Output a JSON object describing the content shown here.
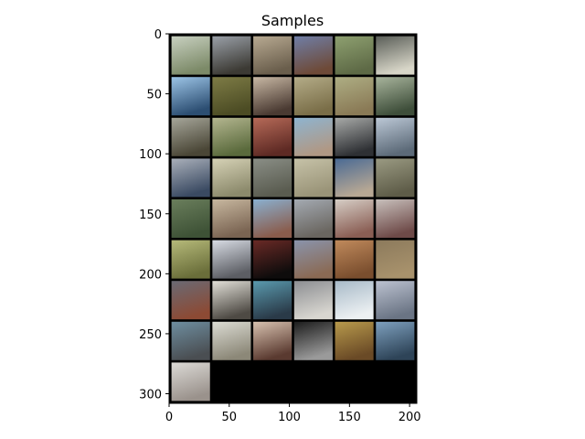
{
  "chart_data": {
    "type": "heatmap",
    "title": "Samples",
    "xlabel": "",
    "ylabel": "",
    "xlim": [
      0,
      206
    ],
    "ylim": [
      308,
      0
    ],
    "xticks": [
      0,
      50,
      100,
      150,
      200
    ],
    "yticks": [
      0,
      50,
      100,
      150,
      200,
      250,
      300
    ],
    "grid": false,
    "grid_layout": {
      "rows": 9,
      "cols": 6,
      "tile_size": 32,
      "padding": 2,
      "sample_count": 49
    },
    "background_color": "#000000",
    "tiles": [
      {
        "top": "#c8d0c0",
        "bottom": "#7c8a68"
      },
      {
        "top": "#9aa0a8",
        "bottom": "#3c3a34"
      },
      {
        "top": "#b8aa92",
        "bottom": "#6a5e4c"
      },
      {
        "top": "#6f7ea6",
        "bottom": "#6e4a38"
      },
      {
        "top": "#8ea070",
        "bottom": "#5e6a46"
      },
      {
        "top": "#5a5e58",
        "bottom": "#d8d6c8"
      },
      {
        "top": "#9cc4e6",
        "bottom": "#2c4e72"
      },
      {
        "top": "#7e7c46",
        "bottom": "#4c4c24"
      },
      {
        "top": "#c8b8a4",
        "bottom": "#4a3a32"
      },
      {
        "top": "#b4ac88",
        "bottom": "#7a6e48"
      },
      {
        "top": "#aeae84",
        "bottom": "#8a7a56"
      },
      {
        "top": "#a8b49c",
        "bottom": "#3e4e3a"
      },
      {
        "top": "#a6a69a",
        "bottom": "#4a4636"
      },
      {
        "top": "#b4b690",
        "bottom": "#5a6a3c"
      },
      {
        "top": "#b66a58",
        "bottom": "#5e2a24"
      },
      {
        "top": "#8eb4d0",
        "bottom": "#b09884"
      },
      {
        "top": "#a8aaa8",
        "bottom": "#2e3034"
      },
      {
        "top": "#bcc8d6",
        "bottom": "#5c6a78"
      },
      {
        "top": "#aab0ba",
        "bottom": "#3a4a62"
      },
      {
        "top": "#d6d2b6",
        "bottom": "#8c8a6c"
      },
      {
        "top": "#8a8e86",
        "bottom": "#5a5c50"
      },
      {
        "top": "#c6c2a8",
        "bottom": "#9a9478"
      },
      {
        "top": "#4a6a94",
        "bottom": "#b8a894"
      },
      {
        "top": "#9a9a82",
        "bottom": "#5e5c48"
      },
      {
        "top": "#6a7e5c",
        "bottom": "#3e5236"
      },
      {
        "top": "#c8b8a0",
        "bottom": "#7a6452"
      },
      {
        "top": "#8ab0d0",
        "bottom": "#8a5c4c"
      },
      {
        "top": "#a4aab2",
        "bottom": "#6a6660"
      },
      {
        "top": "#d6cec6",
        "bottom": "#8a5e54"
      },
      {
        "top": "#c8c0bc",
        "bottom": "#6e4a48"
      },
      {
        "top": "#b6ba7a",
        "bottom": "#6a6e3a"
      },
      {
        "top": "#d8dce4",
        "bottom": "#5c5e64"
      },
      {
        "top": "#6a2a26",
        "bottom": "#0e0c0c"
      },
      {
        "top": "#8a94ac",
        "bottom": "#8a6a54"
      },
      {
        "top": "#c08a5c",
        "bottom": "#7a4e2e"
      },
      {
        "top": "#8c7a5c",
        "bottom": "#a8926c"
      },
      {
        "top": "#6a6a74",
        "bottom": "#8c4a34"
      },
      {
        "top": "#e2e0d8",
        "bottom": "#4e4a44"
      },
      {
        "top": "#5a9aae",
        "bottom": "#2a3a48"
      },
      {
        "top": "#8c8e92",
        "bottom": "#d8d6d0"
      },
      {
        "top": "#a8bac8",
        "bottom": "#ecf0f2"
      },
      {
        "top": "#bcc2d0",
        "bottom": "#6a7484"
      },
      {
        "top": "#6e8ea0",
        "bottom": "#4a4e52"
      },
      {
        "top": "#dcdcd4",
        "bottom": "#8c8878"
      },
      {
        "top": "#d8c2b0",
        "bottom": "#5a3a30"
      },
      {
        "top": "#1c1c1c",
        "bottom": "#9a9a9a"
      },
      {
        "top": "#b89a4c",
        "bottom": "#6a4a26"
      },
      {
        "top": "#7ea0be",
        "bottom": "#2e4458"
      },
      {
        "top": "#dcdad6",
        "bottom": "#9a928c"
      }
    ]
  }
}
